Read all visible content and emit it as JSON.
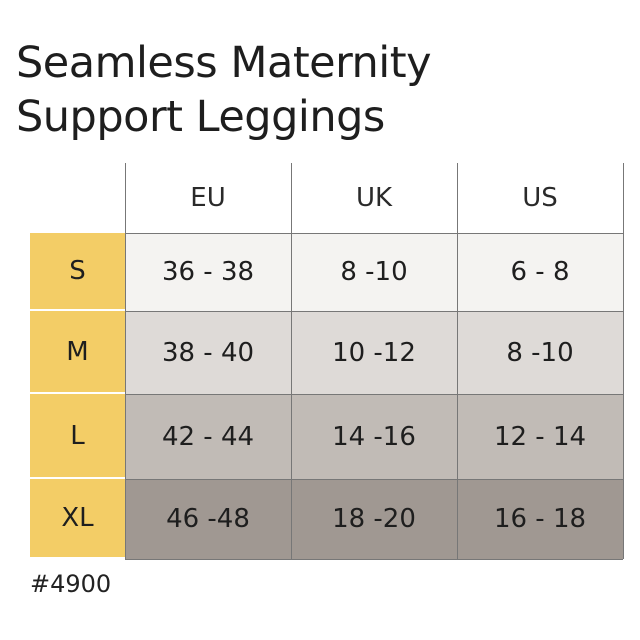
{
  "title_lines": [
    "Seamless Maternity",
    "Support Leggings"
  ],
  "columns": [
    "EU",
    "UK",
    "US"
  ],
  "rows": [
    {
      "size": "S",
      "eu": "36 - 38",
      "uk": "8 -10",
      "us": "6 - 8",
      "bg": "#f4f3f1"
    },
    {
      "size": "M",
      "eu": "38 - 40",
      "uk": "10 -12",
      "us": "8 -10",
      "bg": "#dedad7"
    },
    {
      "size": "L",
      "eu": "42 - 44",
      "uk": "14 -16",
      "us": "12 - 14",
      "bg": "#c1bbb6"
    },
    {
      "size": "XL",
      "eu": "46 -48",
      "uk": "18 -20",
      "us": "16 - 18",
      "bg": "#a09892"
    }
  ],
  "size_column_color": "#f3cd66",
  "sku": "#4900"
}
